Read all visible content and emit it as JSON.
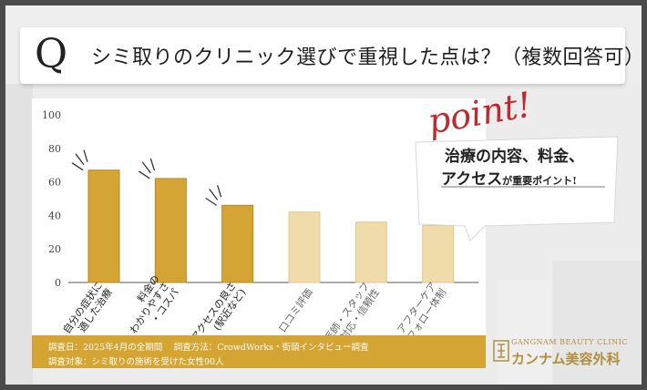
{
  "header": {
    "q_letter": "Q",
    "question": "シミ取りのクリニック選びで重視した点は？（複数回答可）"
  },
  "chart_data": {
    "type": "bar",
    "categories": [
      [
        "自分の症状に",
        "適した治療"
      ],
      [
        "料金の",
        "わかりやすさ",
        "・コスパ"
      ],
      [
        "アクセスの良さ",
        "(駅近など)"
      ],
      [
        "口コミ評価"
      ],
      [
        "医師・スタッフ",
        "の対応・信頼性"
      ],
      [
        "アフターケア",
        "・フォロー体制"
      ]
    ],
    "values": [
      67,
      62,
      46,
      42,
      36,
      34
    ],
    "ylim": [
      0,
      100
    ],
    "yticks": [
      0,
      20,
      40,
      60,
      80,
      100
    ],
    "highlighted": [
      true,
      true,
      true,
      false,
      false,
      false
    ],
    "colors": {
      "highlight": "#d4a434",
      "normal": "#f0dcaa"
    }
  },
  "callout": {
    "point": "point!",
    "line1": "治療の内容、料金、",
    "line2_main": "アクセス",
    "line2_small": "が重要ポイント!"
  },
  "footer": {
    "line1": "調査日：2025年4月の全期間　 調査方法：CrowdWorks・街頭インタビュー調査",
    "line2": "調査対象：シミ取りの施術を受けた女性90人"
  },
  "brand": {
    "en": "GANGNAM BEAUTY CLINIC",
    "ja": "カンナム美容外科"
  }
}
